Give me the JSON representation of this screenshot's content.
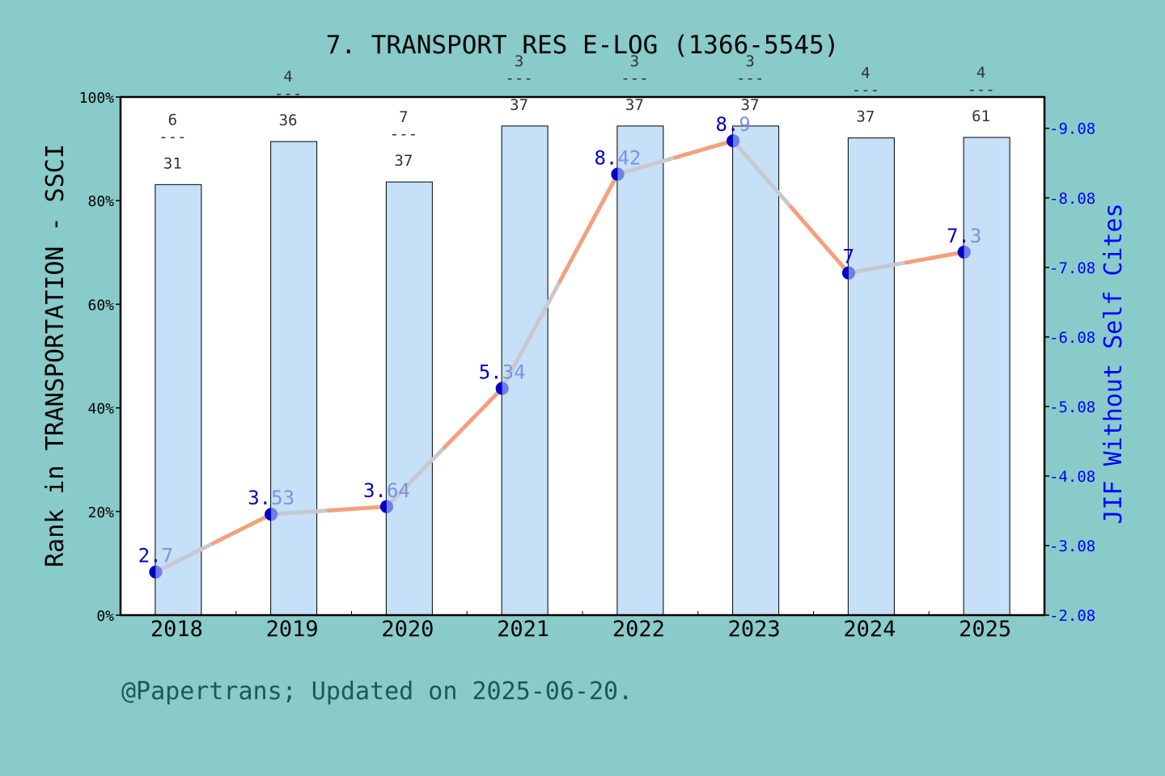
{
  "chart_data": {
    "type": "bar",
    "title": "7. TRANSPORT RES E-LOG (1366-5545)",
    "categories": [
      "2018",
      "2019",
      "2020",
      "2021",
      "2022",
      "2023",
      "2024",
      "2025"
    ],
    "series": [
      {
        "axis": "left",
        "type": "bar",
        "values": [
          83.1,
          91.4,
          83.6,
          94.4,
          94.4,
          94.4,
          92.1,
          92.2
        ],
        "rank_labels": [
          {
            "top": "6",
            "sep": "---",
            "bottom": "31"
          },
          {
            "top": "4",
            "sep": "---",
            "bottom": "36"
          },
          {
            "top": "7",
            "sep": "---",
            "bottom": "37"
          },
          {
            "top": "3",
            "sep": "---",
            "bottom": "37"
          },
          {
            "top": "3",
            "sep": "---",
            "bottom": "37"
          },
          {
            "top": "3",
            "sep": "---",
            "bottom": "37"
          },
          {
            "top": "4",
            "sep": "---",
            "bottom": "37"
          },
          {
            "top": "4",
            "sep": "---",
            "bottom": "61"
          }
        ]
      },
      {
        "axis": "right",
        "type": "line",
        "values": [
          2.7,
          3.53,
          3.64,
          5.34,
          8.42,
          8.9,
          7.0,
          7.3
        ],
        "labels": [
          "2.7",
          "3.53",
          "3.64",
          "5.34",
          "8.42",
          "8.9",
          "7",
          "7.3"
        ]
      }
    ],
    "ylabel": "Rank in TRANSPORTATION - SSCI",
    "y2label": "JIF Without Self Cites",
    "ylim": [
      0,
      100
    ],
    "y2lim": [
      2.08,
      9.53
    ],
    "yticks": [
      "0%",
      "20%",
      "40%",
      "60%",
      "80%",
      "100%"
    ],
    "y2ticks": [
      "2.08",
      "3.08",
      "4.08",
      "5.08",
      "6.08",
      "7.08",
      "8.08",
      "9.08"
    ],
    "grid": false,
    "footer": "@Papertrans; Updated on 2025-06-20."
  },
  "colors": {
    "background": "#88cbc9",
    "plot_bg": "#ffffff",
    "bar_fill": "#c5e0f7",
    "line_orange": "#f4a07c",
    "line_gray": "#c8c8d0",
    "marker": "#0000cc",
    "right_axis": "#0000ff",
    "footer": "#1a5a55"
  }
}
